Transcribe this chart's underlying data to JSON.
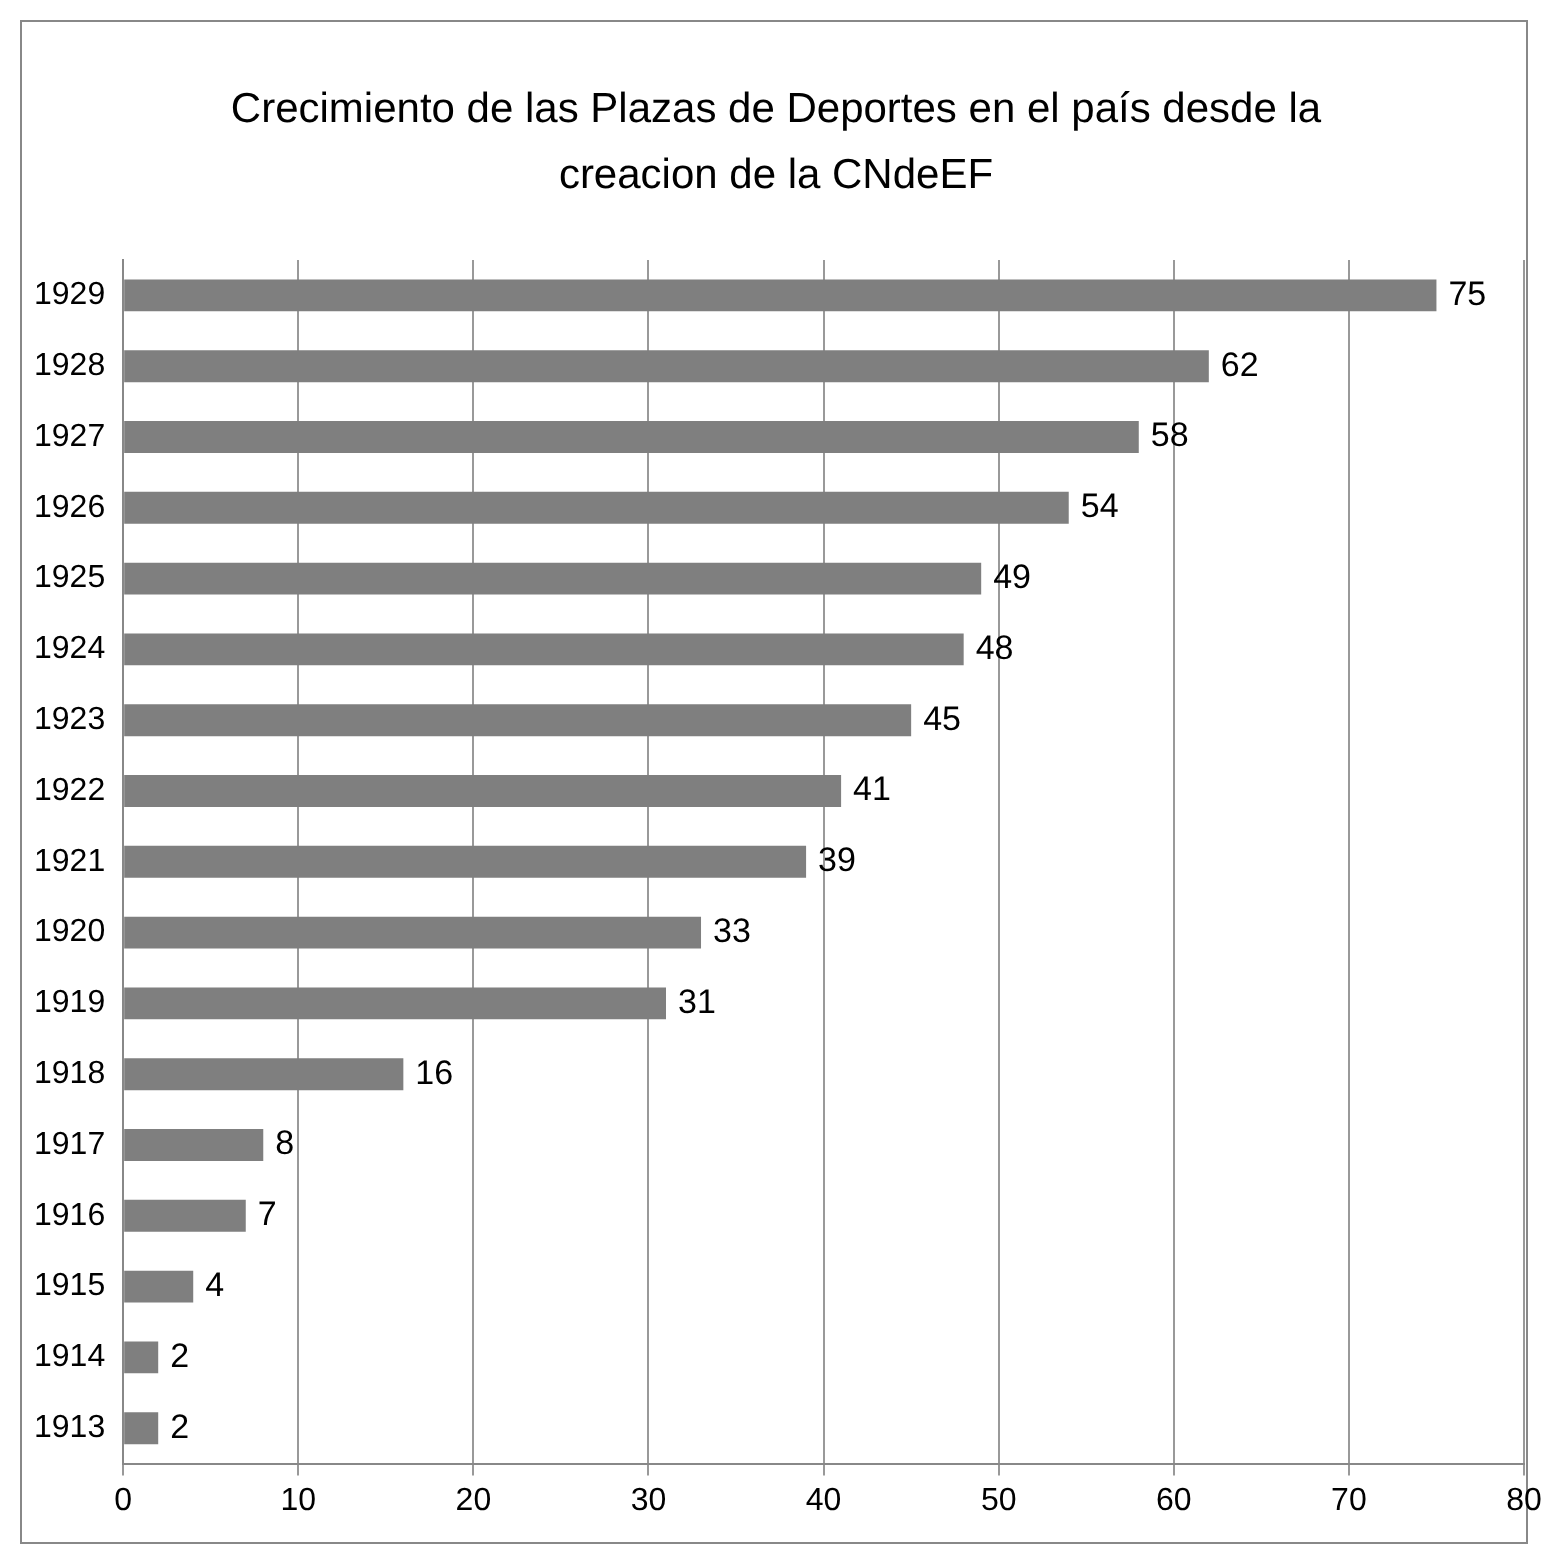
{
  "chart_data": {
    "type": "bar",
    "orientation": "horizontal",
    "title": "Crecimiento de las Plazas de Deportes en el país desde la creacion de la CNdeEF",
    "categories": [
      "1929",
      "1928",
      "1927",
      "1926",
      "1925",
      "1924",
      "1923",
      "1922",
      "1921",
      "1920",
      "1919",
      "1918",
      "1917",
      "1916",
      "1915",
      "1914",
      "1913"
    ],
    "values": [
      75,
      62,
      58,
      54,
      49,
      48,
      45,
      41,
      39,
      33,
      31,
      16,
      8,
      7,
      4,
      2,
      2
    ],
    "color": "#7f7f7f",
    "xlim": [
      0,
      80
    ],
    "xticks": [
      0,
      10,
      20,
      30,
      40,
      50,
      60,
      70,
      80
    ],
    "grid": "x",
    "data_labels": true,
    "legend": false
  }
}
